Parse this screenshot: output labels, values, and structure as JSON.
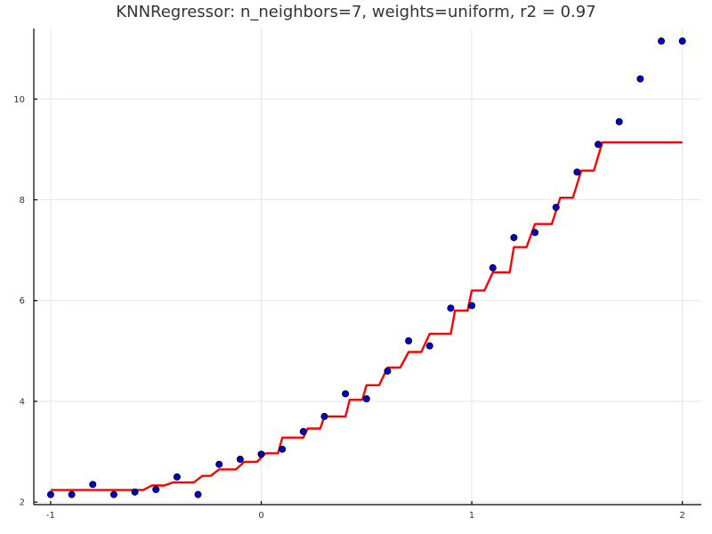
{
  "chart_data": {
    "type": "scatter",
    "title": "KNNRegressor: n_neighbors=7, weights=uniform, r2 = 0.97",
    "xlabel": "",
    "ylabel": "",
    "xlim": [
      -1.08,
      2.09
    ],
    "ylim": [
      1.95,
      11.4
    ],
    "xticks": [
      -1,
      0,
      1,
      2
    ],
    "yticks": [
      2,
      4,
      6,
      8,
      10
    ],
    "grid": true,
    "colors": {
      "points_fill": "#0000cc",
      "points_stroke": "#000000",
      "line": "#ff0000"
    },
    "points": {
      "x": [
        -1.0,
        -0.9,
        -0.8,
        -0.7,
        -0.6,
        -0.5,
        -0.4,
        -0.3,
        -0.2,
        -0.1,
        0.0,
        0.1,
        0.2,
        0.3,
        0.4,
        0.5,
        0.6,
        0.7,
        0.8,
        0.9,
        1.0,
        1.1,
        1.2,
        1.3,
        1.4,
        1.5,
        1.6,
        1.7,
        1.8,
        1.9,
        2.0
      ],
      "y": [
        2.15,
        2.15,
        2.35,
        2.15,
        2.2,
        2.25,
        2.5,
        2.15,
        2.75,
        2.85,
        2.95,
        3.05,
        3.4,
        3.7,
        4.15,
        4.05,
        4.6,
        5.2,
        5.1,
        5.85,
        5.9,
        6.65,
        7.25,
        7.35,
        7.85,
        8.55,
        9.1,
        9.55,
        10.4,
        11.15,
        11.15
      ]
    },
    "series": [
      {
        "name": "",
        "steps": [
          [
            -1.0,
            2.24
          ],
          [
            -0.56,
            2.24
          ],
          [
            -0.52,
            2.33
          ],
          [
            -0.46,
            2.33
          ],
          [
            -0.42,
            2.39
          ],
          [
            -0.32,
            2.39
          ],
          [
            -0.28,
            2.52
          ],
          [
            -0.24,
            2.52
          ],
          [
            -0.2,
            2.65
          ],
          [
            -0.12,
            2.65
          ],
          [
            -0.08,
            2.8
          ],
          [
            -0.02,
            2.8
          ],
          [
            0.02,
            2.97
          ],
          [
            0.08,
            2.97
          ],
          [
            0.1,
            3.28
          ],
          [
            0.2,
            3.28
          ],
          [
            0.22,
            3.46
          ],
          [
            0.28,
            3.46
          ],
          [
            0.3,
            3.7
          ],
          [
            0.4,
            3.7
          ],
          [
            0.42,
            4.03
          ],
          [
            0.48,
            4.03
          ],
          [
            0.5,
            4.32
          ],
          [
            0.56,
            4.32
          ],
          [
            0.6,
            4.67
          ],
          [
            0.66,
            4.67
          ],
          [
            0.7,
            4.98
          ],
          [
            0.76,
            4.98
          ],
          [
            0.8,
            5.34
          ],
          [
            0.9,
            5.34
          ],
          [
            0.92,
            5.8
          ],
          [
            0.98,
            5.8
          ],
          [
            1.0,
            6.2
          ],
          [
            1.06,
            6.2
          ],
          [
            1.1,
            6.56
          ],
          [
            1.18,
            6.56
          ],
          [
            1.2,
            7.06
          ],
          [
            1.26,
            7.06
          ],
          [
            1.3,
            7.52
          ],
          [
            1.38,
            7.52
          ],
          [
            1.42,
            8.04
          ],
          [
            1.48,
            8.04
          ],
          [
            1.52,
            8.58
          ],
          [
            1.58,
            8.58
          ],
          [
            1.62,
            9.14
          ],
          [
            2.0,
            9.14
          ]
        ]
      }
    ]
  }
}
